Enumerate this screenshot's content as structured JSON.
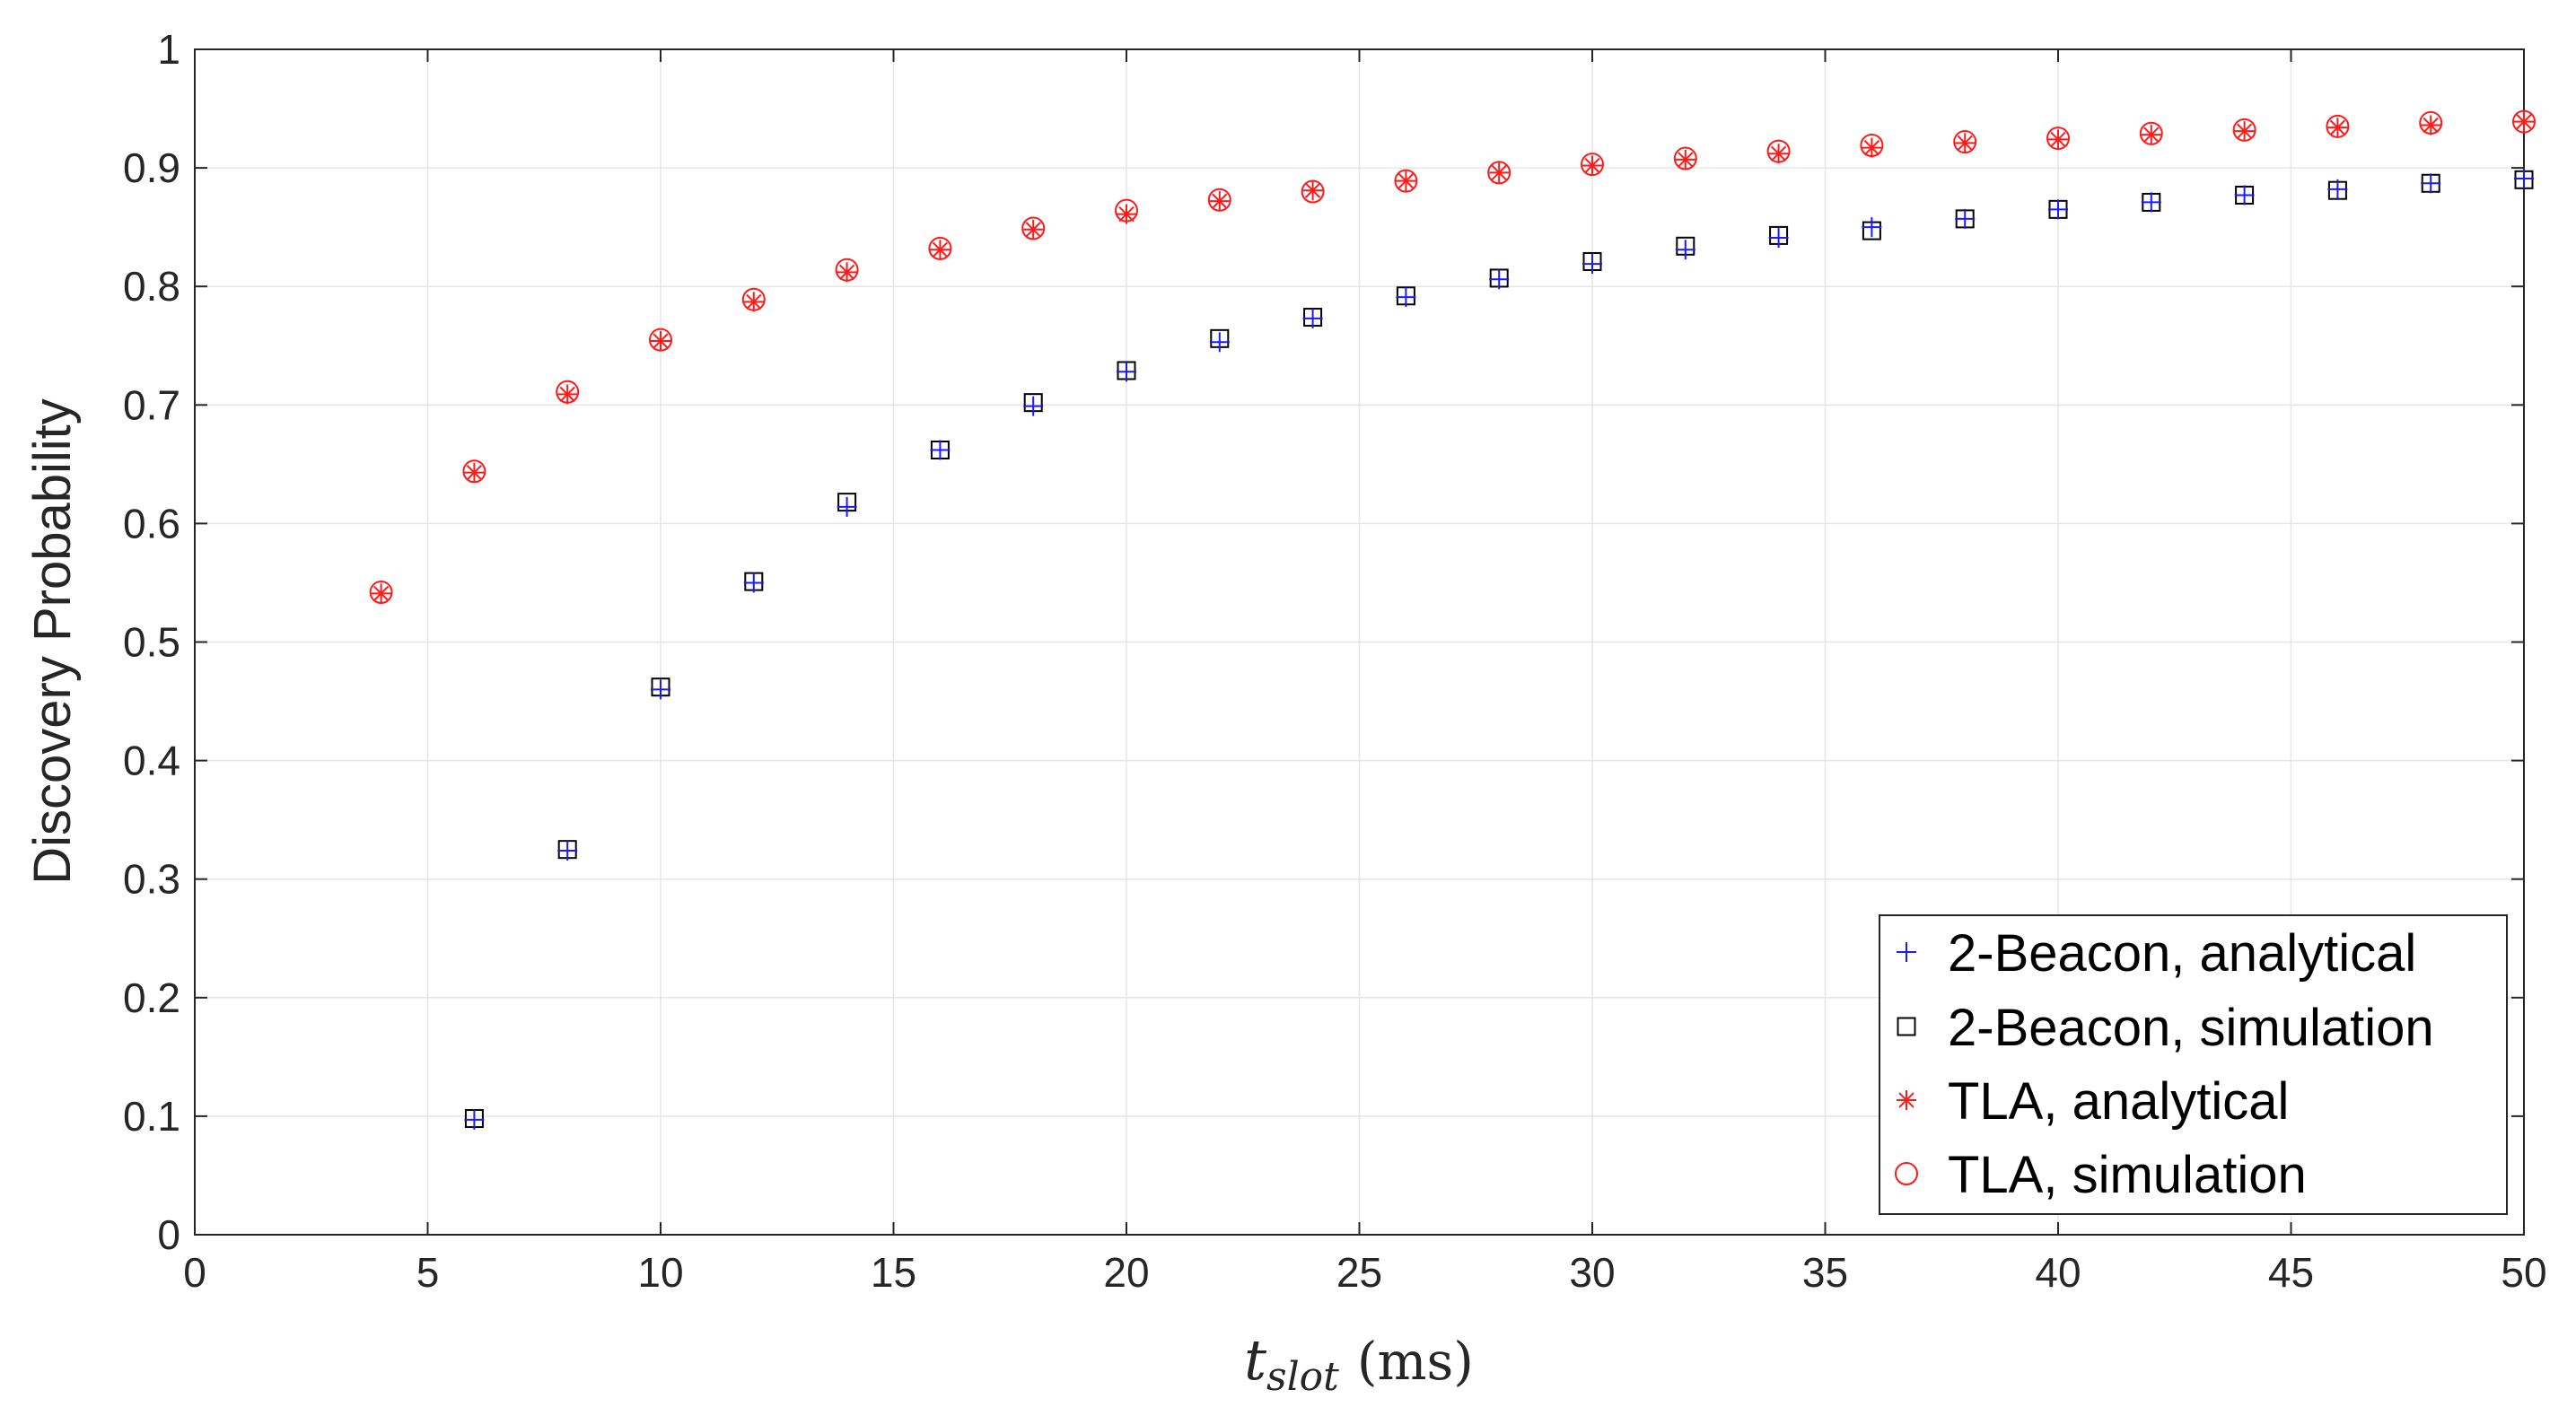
{
  "chart_data": {
    "type": "scatter",
    "title": "",
    "xlabel": {
      "symbol": "t",
      "subscript": "slot",
      "unit": "(ms)"
    },
    "ylabel": "Discovery Probability",
    "xlim": [
      0,
      50
    ],
    "ylim": [
      0,
      1
    ],
    "xticks": [
      0,
      5,
      10,
      15,
      20,
      25,
      30,
      35,
      40,
      45,
      50
    ],
    "yticks": [
      0,
      0.1,
      0.2,
      0.3,
      0.4,
      0.5,
      0.6,
      0.7,
      0.8,
      0.9,
      1
    ],
    "ytick_labels": [
      "0",
      "0.1",
      "0.2",
      "0.3",
      "0.4",
      "0.5",
      "0.6",
      "0.7",
      "0.8",
      "0.9",
      "1"
    ],
    "grid": true,
    "legend_position": "bottom-right",
    "series": [
      {
        "name": "2-Beacon, analytical",
        "marker": "plus",
        "color": "#1a1aff",
        "x": [
          6,
          8,
          10,
          12,
          14,
          16,
          18,
          20,
          22,
          24,
          26,
          28,
          30,
          32,
          34,
          36,
          38,
          40,
          42,
          44,
          46,
          48,
          50
        ],
        "y": [
          0.097,
          0.324,
          0.46,
          0.55,
          0.614,
          0.662,
          0.699,
          0.728,
          0.753,
          0.773,
          0.791,
          0.806,
          0.819,
          0.831,
          0.841,
          0.85,
          0.857,
          0.865,
          0.871,
          0.877,
          0.882,
          0.887,
          0.891
        ]
      },
      {
        "name": "2-Beacon, simulation",
        "marker": "square",
        "color": "#000000",
        "x": [
          6,
          8,
          10,
          12,
          14,
          16,
          18,
          20,
          22,
          24,
          26,
          28,
          30,
          32,
          34,
          36,
          38,
          40,
          42,
          44,
          46,
          48,
          50
        ],
        "y": [
          0.098,
          0.325,
          0.462,
          0.551,
          0.618,
          0.662,
          0.702,
          0.729,
          0.756,
          0.774,
          0.792,
          0.807,
          0.821,
          0.834,
          0.843,
          0.847,
          0.857,
          0.865,
          0.871,
          0.877,
          0.881,
          0.887,
          0.89
        ]
      },
      {
        "name": "TLA, analytical",
        "marker": "asterisk",
        "color": "#ff1a1a",
        "x": [
          4,
          6,
          8,
          10,
          12,
          14,
          16,
          18,
          20,
          22,
          24,
          26,
          28,
          30,
          32,
          34,
          36,
          38,
          40,
          42,
          44,
          46,
          48,
          50
        ],
        "y": [
          0.541,
          0.643,
          0.709,
          0.754,
          0.787,
          0.812,
          0.831,
          0.848,
          0.861,
          0.872,
          0.881,
          0.889,
          0.896,
          0.902,
          0.907,
          0.912,
          0.917,
          0.921,
          0.924,
          0.928,
          0.931,
          0.934,
          0.936,
          0.939
        ]
      },
      {
        "name": "TLA, simulation",
        "marker": "circle",
        "color": "#ff1a1a",
        "x": [
          4,
          6,
          8,
          10,
          12,
          14,
          16,
          18,
          20,
          22,
          24,
          26,
          28,
          30,
          32,
          34,
          36,
          38,
          40,
          42,
          44,
          46,
          48,
          50
        ],
        "y": [
          0.542,
          0.644,
          0.711,
          0.755,
          0.789,
          0.814,
          0.832,
          0.849,
          0.864,
          0.873,
          0.88,
          0.889,
          0.896,
          0.903,
          0.908,
          0.914,
          0.919,
          0.922,
          0.925,
          0.929,
          0.932,
          0.935,
          0.938,
          0.939
        ]
      }
    ]
  }
}
